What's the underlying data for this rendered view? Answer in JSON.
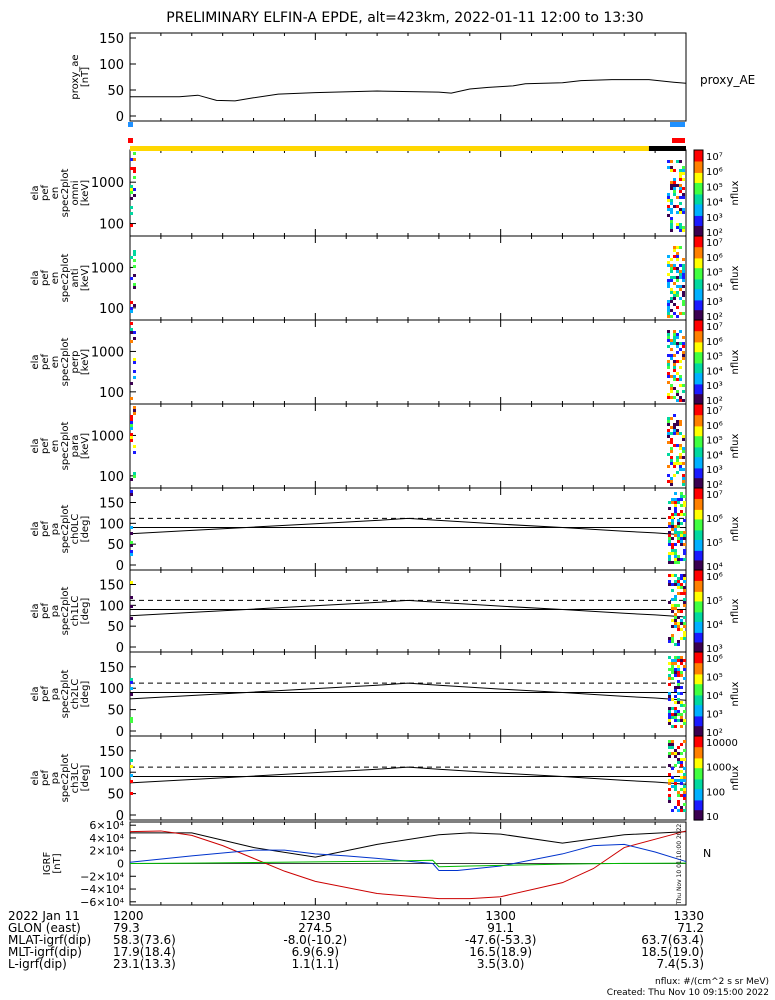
{
  "chart_data": {
    "title": "PRELIMINARY ELFIN-A EPDE, alt=423km, 2022-01-11 12:00 to 13:30",
    "x_range_minutes": [
      0,
      90
    ],
    "time_ticks": [
      "1200",
      "1230",
      "1300",
      "1330"
    ],
    "panels": [
      {
        "name": "proxy_ae",
        "type": "line",
        "ylabel": [
          "proxy_ae",
          "[nT]"
        ],
        "yticks": [
          "150",
          "100",
          "50",
          "0"
        ],
        "ylim": [
          0,
          150
        ],
        "right_label": "proxy_AE",
        "series": [
          {
            "x": [
              0,
              8,
              11,
              14,
              17,
              20,
              24,
              30,
              40,
              50,
              52,
              55,
              58,
              62,
              64,
              70,
              73,
              78,
              84,
              88,
              90
            ],
            "y": [
              37,
              37,
              40,
              30,
              29,
              35,
              42,
              45,
              48,
              46,
              44,
              52,
              55,
              58,
              62,
              64,
              68,
              70,
              70,
              65,
              63
            ]
          }
        ]
      },
      {
        "name": "pef-en-omni",
        "type": "heatmap",
        "ylabel": [
          "ela",
          "pef",
          "en",
          "spec2plot",
          "omni",
          "[keV]"
        ],
        "yticks": [
          "1000",
          "100"
        ],
        "ylog": [
          50,
          6000
        ],
        "colorbar": {
          "label": "nflux",
          "ticks": [
            "10⁷",
            "10⁶",
            "10⁵",
            "10⁴",
            "10³",
            "10²"
          ]
        }
      },
      {
        "name": "pef-en-anti",
        "type": "heatmap",
        "ylabel": [
          "ela",
          "pef",
          "en",
          "spec2plot",
          "anti",
          "[keV]"
        ],
        "yticks": [
          "1000",
          "100"
        ],
        "ylog": [
          50,
          6000
        ],
        "colorbar": {
          "label": "nflux",
          "ticks": [
            "10⁷",
            "10⁶",
            "10⁵",
            "10⁴",
            "10³",
            "10²"
          ]
        }
      },
      {
        "name": "pef-en-perp",
        "type": "heatmap",
        "ylabel": [
          "ela",
          "pef",
          "en",
          "spec2plot",
          "perp",
          "[keV]"
        ],
        "yticks": [
          "1000",
          "100"
        ],
        "ylog": [
          50,
          6000
        ],
        "colorbar": {
          "label": "nflux",
          "ticks": [
            "10⁷",
            "10⁶",
            "10⁵",
            "10⁴",
            "10³",
            "10²"
          ]
        }
      },
      {
        "name": "pef-en-para",
        "type": "heatmap",
        "ylabel": [
          "ela",
          "pef",
          "en",
          "spec2plot",
          "para",
          "[keV]"
        ],
        "yticks": [
          "1000",
          "100"
        ],
        "ylog": [
          50,
          6000
        ],
        "colorbar": {
          "label": "nflux",
          "ticks": [
            "10⁷",
            "10⁶",
            "10⁵",
            "10⁴",
            "10³",
            "10²"
          ]
        }
      },
      {
        "name": "pef-pa-ch0",
        "type": "heatmap",
        "ylabel": [
          "ela",
          "pef",
          "pa",
          "spec2plot",
          "ch0LC",
          "[deg]"
        ],
        "yticks": [
          "150",
          "100",
          "50",
          "0"
        ],
        "ylim": [
          0,
          180
        ],
        "colorbar": {
          "label": "nflux",
          "ticks": [
            "10⁷",
            "10⁶",
            "10⁵",
            "10⁴"
          ]
        }
      },
      {
        "name": "pef-pa-ch1",
        "type": "heatmap",
        "ylabel": [
          "ela",
          "pef",
          "pa",
          "spec2plot",
          "ch1LC",
          "[deg]"
        ],
        "yticks": [
          "150",
          "100",
          "50",
          "0"
        ],
        "ylim": [
          0,
          180
        ],
        "colorbar": {
          "label": "nflux",
          "ticks": [
            "10⁶",
            "10⁵",
            "10⁴",
            "10³"
          ]
        }
      },
      {
        "name": "pef-pa-ch2",
        "type": "heatmap",
        "ylabel": [
          "ela",
          "pef",
          "pa",
          "spec2plot",
          "ch2LC",
          "[deg]"
        ],
        "yticks": [
          "150",
          "100",
          "50",
          "0"
        ],
        "ylim": [
          0,
          180
        ],
        "colorbar": {
          "label": "nflux",
          "ticks": [
            "10⁶",
            "10⁵",
            "10⁴",
            "10³",
            "10²"
          ]
        }
      },
      {
        "name": "pef-pa-ch3",
        "type": "heatmap",
        "ylabel": [
          "ela",
          "pef",
          "pa",
          "spec2plot",
          "ch3LC",
          "[deg]"
        ],
        "yticks": [
          "150",
          "100",
          "50",
          "0"
        ],
        "ylim": [
          0,
          180
        ],
        "colorbar": {
          "label": "nflux",
          "ticks": [
            "10000",
            "1000",
            "100",
            "10"
          ]
        }
      },
      {
        "name": "igrf",
        "type": "line",
        "ylabel": [
          "IGRF",
          "[nT]"
        ],
        "yticks": [
          "6×10⁴",
          "4×10⁴",
          "2×10⁴",
          "0",
          "−2×10⁴",
          "−4×10⁴",
          "−6×10⁴"
        ],
        "ylim": [
          -65000,
          65000
        ],
        "right_label": "N"
      }
    ],
    "lc_lines": {
      "dashed": 112,
      "solid": 90
    },
    "lc_curve": {
      "x": [
        0,
        10,
        20,
        30,
        40,
        45,
        50,
        60,
        70,
        80,
        85,
        90
      ],
      "y": [
        75,
        83,
        91,
        99,
        107,
        112,
        107,
        98,
        90,
        81,
        77,
        72
      ]
    },
    "igrf_series": [
      {
        "color": "#000000",
        "x": [
          0,
          10,
          20,
          30,
          40,
          50,
          55,
          60,
          70,
          80,
          90
        ],
        "y": [
          48000,
          48000,
          25000,
          10000,
          30000,
          45000,
          48000,
          46000,
          32000,
          45000,
          50000
        ]
      },
      {
        "color": "#cc0000",
        "x": [
          0,
          5,
          10,
          15,
          20,
          25,
          30,
          40,
          50,
          55,
          60,
          70,
          75,
          80,
          90
        ],
        "y": [
          50000,
          51000,
          44000,
          28000,
          8000,
          -12000,
          -28000,
          -47000,
          -55000,
          -55000,
          -52000,
          -30000,
          -8000,
          25000,
          51000
        ]
      },
      {
        "color": "#0033cc",
        "x": [
          0,
          10,
          20,
          25,
          30,
          35,
          40,
          49,
          50,
          53,
          60,
          70,
          75,
          80,
          85,
          90
        ],
        "y": [
          2000,
          12000,
          21000,
          21000,
          15000,
          12000,
          8000,
          0,
          -11000,
          -11000,
          -4000,
          15000,
          28000,
          30000,
          18000,
          3000
        ]
      },
      {
        "color": "#00bb00",
        "x": [
          0,
          10,
          20,
          30,
          40,
          49,
          50,
          55,
          60,
          70,
          80,
          90
        ],
        "y": [
          0,
          500,
          1500,
          2500,
          3500,
          5000,
          -5000,
          -4000,
          -3000,
          -1000,
          200,
          500
        ]
      }
    ],
    "state_bars": {
      "blue_marks": [
        "start",
        "end"
      ],
      "red_marks": [
        "start",
        "end"
      ],
      "yellow_until_minute": 84,
      "black_from_minute": 84
    },
    "ephemeris": {
      "rows": [
        {
          "label": "2022 Jan 11",
          "values": [
            "1200",
            "1230",
            "1300",
            "1330"
          ]
        },
        {
          "label": "GLON (east)",
          "values": [
            "79.3",
            "274.5",
            "91.1",
            "71.2"
          ]
        },
        {
          "label": "MLAT-igrf(dip)",
          "values": [
            "58.3(73.6)",
            "-8.0(-10.2)",
            "-47.6(-53.3)",
            "63.7(63.4)"
          ]
        },
        {
          "label": "MLT-igrf(dip)",
          "values": [
            "17.9(18.4)",
            "6.9(6.9)",
            "16.5(18.9)",
            "18.5(19.0)"
          ]
        },
        {
          "label": "L-igrf(dip)",
          "values": [
            "23.1(13.3)",
            "1.1(1.1)",
            "3.5(3.0)",
            "7.4(5.3)"
          ]
        }
      ]
    },
    "footer": {
      "nflux": "nflux: #/(cm^2 s sr MeV)",
      "created": "Created: Thu Nov 10 09:15:00 2022",
      "stamp": "Thu Nov 10 01:10:00 2022"
    },
    "colors": {
      "spectrogram": [
        "#3a0050",
        "#1a1aff",
        "#00b0ff",
        "#00d8a0",
        "#40ff40",
        "#ffff00",
        "#ff8000",
        "#ff0000"
      ],
      "state_yellow": "#ffd700",
      "state_blue": "#1e90ff",
      "state_red": "#ff0000"
    }
  }
}
